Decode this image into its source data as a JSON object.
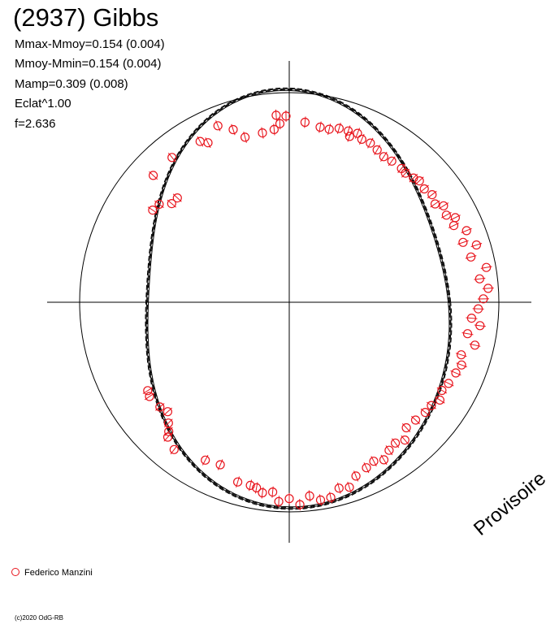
{
  "title": "(2937) Gibbs",
  "stats": [
    "Mmax-Mmoy=0.154 (0.004)",
    "Mmoy-Mmin=0.154 (0.004)",
    "Mamp=0.309 (0.008)",
    "Eclat^1.00",
    "f=2.636"
  ],
  "legend": {
    "observer": "Federico Manzini"
  },
  "copyright": "(c)2020 OdG-RB",
  "watermark": "Provisoire",
  "colors": {
    "points": "#e8141c",
    "lines": "#000000"
  },
  "chart_data": {
    "type": "scatter",
    "coordinate_system": "polar",
    "reference_circle_radius": 1.0,
    "axes_cross_at_center": true,
    "grid": false,
    "legend_position": "bottom-left",
    "fit_curve": {
      "harmonic_1_cos": 0.03,
      "harmonic_2_cos": -0.139,
      "harmonic_2_sin": -0.012,
      "harmonic_3_cos": 0.013,
      "harmonic_3_sin": -0.017,
      "harmonic_4_cos": 0.01,
      "band_copies": 4,
      "band_spread": 0.004
    },
    "series": [
      {
        "marker": "open-circle-errorbar",
        "points": [
          {
            "r": 0.894,
            "theta": 94
          },
          {
            "r": 0.888,
            "theta": 91
          },
          {
            "r": 0.853,
            "theta": 93
          },
          {
            "r": 0.827,
            "theta": 95
          },
          {
            "r": 0.862,
            "theta": 85
          },
          {
            "r": 0.848,
            "theta": 80
          },
          {
            "r": 0.847,
            "theta": 77
          },
          {
            "r": 0.863,
            "theta": 74
          },
          {
            "r": 0.864,
            "theta": 71
          },
          {
            "r": 0.842,
            "theta": 70
          },
          {
            "r": 0.869,
            "theta": 68
          },
          {
            "r": 0.851,
            "theta": 66
          },
          {
            "r": 0.852,
            "theta": 63
          },
          {
            "r": 0.839,
            "theta": 60
          },
          {
            "r": 0.828,
            "theta": 57
          },
          {
            "r": 0.832,
            "theta": 54
          },
          {
            "r": 0.833,
            "theta": 50
          },
          {
            "r": 0.829,
            "theta": 48
          },
          {
            "r": 0.838,
            "theta": 45
          },
          {
            "r": 0.849,
            "theta": 43
          },
          {
            "r": 0.841,
            "theta": 40
          },
          {
            "r": 0.853,
            "theta": 37
          },
          {
            "r": 0.839,
            "theta": 34
          },
          {
            "r": 0.868,
            "theta": 32
          },
          {
            "r": 0.857,
            "theta": 29
          },
          {
            "r": 0.889,
            "theta": 27
          },
          {
            "r": 0.866,
            "theta": 25
          },
          {
            "r": 0.912,
            "theta": 22
          },
          {
            "r": 0.877,
            "theta": 19
          },
          {
            "r": 0.934,
            "theta": 17
          },
          {
            "r": 0.893,
            "theta": 14
          },
          {
            "r": 0.955,
            "theta": 10
          },
          {
            "r": 0.915,
            "theta": 7
          },
          {
            "r": 0.951,
            "theta": 4
          },
          {
            "r": 0.926,
            "theta": 1
          },
          {
            "r": 0.902,
            "theta": -2
          },
          {
            "r": 0.873,
            "theta": -5
          },
          {
            "r": 0.917,
            "theta": -7
          },
          {
            "r": 0.864,
            "theta": -10
          },
          {
            "r": 0.909,
            "theta": -13
          },
          {
            "r": 0.858,
            "theta": -17
          },
          {
            "r": 0.875,
            "theta": -20
          },
          {
            "r": 0.863,
            "theta": -23
          },
          {
            "r": 0.853,
            "theta": -27
          },
          {
            "r": 0.841,
            "theta": -30
          },
          {
            "r": 0.857,
            "theta": -33
          },
          {
            "r": 0.838,
            "theta": -36
          },
          {
            "r": 0.835,
            "theta": -39
          },
          {
            "r": 0.824,
            "theta": -43
          },
          {
            "r": 0.819,
            "theta": -47
          },
          {
            "r": 0.858,
            "theta": -50
          },
          {
            "r": 0.841,
            "theta": -53
          },
          {
            "r": 0.852,
            "theta": -56
          },
          {
            "r": 0.877,
            "theta": -59
          },
          {
            "r": 0.859,
            "theta": -62
          },
          {
            "r": 0.871,
            "theta": -65
          },
          {
            "r": 0.888,
            "theta": -69
          },
          {
            "r": 0.928,
            "theta": -72
          },
          {
            "r": 0.918,
            "theta": -75
          },
          {
            "r": 0.952,
            "theta": -78
          },
          {
            "r": 0.955,
            "theta": -81
          },
          {
            "r": 0.929,
            "theta": -84
          },
          {
            "r": 0.967,
            "theta": -87
          },
          {
            "r": 0.937,
            "theta": -90
          },
          {
            "r": 0.952,
            "theta": -93
          },
          {
            "r": 0.909,
            "theta": -95
          },
          {
            "r": 0.918,
            "theta": -98
          },
          {
            "r": 0.899,
            "theta": -100
          },
          {
            "r": 0.893,
            "theta": -102
          },
          {
            "r": 0.892,
            "theta": -106
          },
          {
            "r": 0.842,
            "theta": -113
          },
          {
            "r": 0.853,
            "theta": -118
          },
          {
            "r": 0.892,
            "theta": -128
          },
          {
            "r": 0.866,
            "theta": -132
          },
          {
            "r": 0.843,
            "theta": -133
          },
          {
            "r": 0.815,
            "theta": -135
          },
          {
            "r": 0.78,
            "theta": -138
          },
          {
            "r": 0.794,
            "theta": -141
          },
          {
            "r": 0.804,
            "theta": -146
          },
          {
            "r": 0.796,
            "theta": -148
          },
          {
            "r": 0.786,
            "theta": 146
          },
          {
            "r": 0.777,
            "theta": 143
          },
          {
            "r": 0.732,
            "theta": 140
          },
          {
            "r": 0.73,
            "theta": 137
          },
          {
            "r": 0.887,
            "theta": 137
          },
          {
            "r": 0.889,
            "theta": 129
          },
          {
            "r": 0.877,
            "theta": 119
          },
          {
            "r": 0.854,
            "theta": 117
          },
          {
            "r": 0.908,
            "theta": 112
          },
          {
            "r": 0.866,
            "theta": 108
          },
          {
            "r": 0.815,
            "theta": 105
          },
          {
            "r": 0.818,
            "theta": 99
          }
        ]
      }
    ]
  }
}
